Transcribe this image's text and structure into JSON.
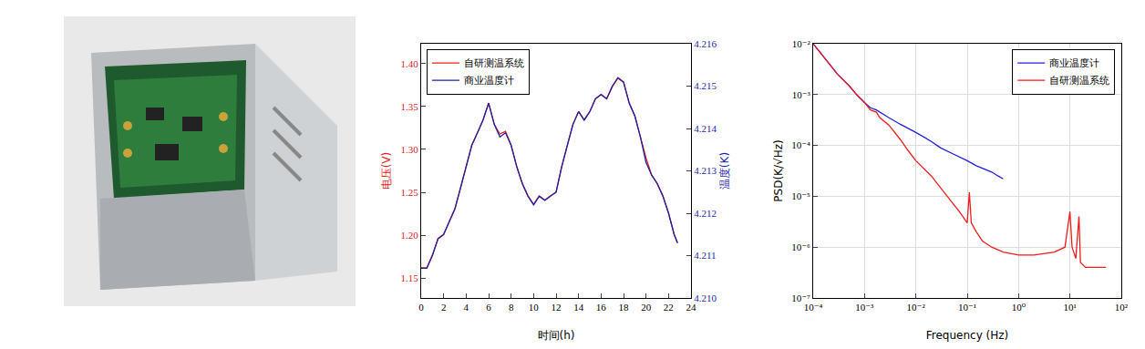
{
  "chart_data": [
    {
      "type": "line",
      "x_label": "时间(h)",
      "y_label": "电压(V)",
      "y2_label": "温度(K)",
      "xlim": [
        0,
        24
      ],
      "xticks": [
        0,
        2,
        4,
        6,
        8,
        10,
        12,
        14,
        16,
        18,
        20,
        22,
        24
      ],
      "ylim": [
        1.127,
        1.423
      ],
      "yticks": [
        1.15,
        {
          "value": 1.2,
          "label": "1.20"
        },
        1.25,
        {
          "value": 1.3,
          "label": "1.30"
        },
        1.35,
        {
          "value": 1.4,
          "label": "1.40"
        }
      ],
      "y2lim": [
        4.21,
        4.216
      ],
      "y2ticks": [
        {
          "value": 4.21,
          "label": "4.210"
        },
        4.211,
        4.212,
        4.213,
        4.214,
        4.215,
        4.216
      ],
      "grid": false,
      "legend": "top-left",
      "x": [
        0,
        0.5,
        1,
        1.5,
        2,
        2.5,
        3,
        3.5,
        4,
        4.5,
        5,
        5.5,
        6,
        6.5,
        7,
        7.5,
        8,
        8.5,
        9,
        9.5,
        10,
        10.5,
        11,
        11.5,
        12,
        12.5,
        13,
        13.5,
        14,
        14.5,
        15,
        15.5,
        16,
        16.5,
        17,
        17.5,
        18,
        18.5,
        19,
        19.5,
        20,
        20.5,
        21,
        21.5,
        22,
        22.5,
        22.8
      ],
      "series": [
        {
          "name": "自研测温系统",
          "color": "#e8201c",
          "axis": "y",
          "values": [
            1.162,
            1.162,
            1.177,
            1.196,
            1.201,
            1.216,
            1.231,
            1.255,
            1.28,
            1.305,
            1.319,
            1.334,
            1.354,
            1.329,
            1.318,
            1.321,
            1.305,
            1.28,
            1.26,
            1.246,
            1.236,
            1.246,
            1.241,
            1.246,
            1.25,
            1.28,
            1.305,
            1.329,
            1.344,
            1.334,
            1.344,
            1.359,
            1.364,
            1.359,
            1.373,
            1.383,
            1.378,
            1.354,
            1.339,
            1.314,
            1.29,
            1.27,
            1.26,
            1.246,
            1.226,
            1.201,
            1.191
          ]
        },
        {
          "name": "商业温度计",
          "color": "#1f1fa8",
          "axis": "y2",
          "values": [
            4.2107,
            4.2107,
            4.211,
            4.2114,
            4.2115,
            4.2118,
            4.2121,
            4.2126,
            4.2131,
            4.2136,
            4.2139,
            4.2142,
            4.2146,
            4.2141,
            4.2138,
            4.2139,
            4.2136,
            4.2131,
            4.2127,
            4.2124,
            4.2122,
            4.2124,
            4.2123,
            4.2124,
            4.2125,
            4.2131,
            4.2136,
            4.2141,
            4.2144,
            4.2142,
            4.2144,
            4.2147,
            4.2148,
            4.2147,
            4.215,
            4.2152,
            4.2151,
            4.2146,
            4.2143,
            4.2138,
            4.2132,
            4.2129,
            4.2127,
            4.2124,
            4.212,
            4.2115,
            4.2113
          ]
        }
      ]
    },
    {
      "type": "line",
      "log": true,
      "x_label": "Frequency (Hz)",
      "y_label": "PSD(K/√Hz)",
      "xlim": [
        0.0001,
        100
      ],
      "xticks": [
        {
          "value": 0.0001,
          "label": "10⁻⁴"
        },
        {
          "value": 0.001,
          "label": "10⁻³"
        },
        {
          "value": 0.01,
          "label": "10⁻²"
        },
        {
          "value": 0.1,
          "label": "10⁻¹"
        },
        {
          "value": 1,
          "label": "10⁰"
        },
        {
          "value": 10,
          "label": "10¹"
        },
        {
          "value": 100,
          "label": "10²"
        }
      ],
      "ylim": [
        1e-07,
        0.01
      ],
      "yticks": [
        {
          "value": 1e-07,
          "label": "10⁻⁷"
        },
        {
          "value": 1e-06,
          "label": "10⁻⁶"
        },
        {
          "value": 1e-05,
          "label": "10⁻⁵"
        },
        {
          "value": 0.0001,
          "label": "10⁻⁴"
        },
        {
          "value": 0.001,
          "label": "10⁻³"
        },
        {
          "value": 0.01,
          "label": "10⁻²"
        }
      ],
      "grid": true,
      "legend": "top-right",
      "series": [
        {
          "name": "商业温度计",
          "color": "#1f1fd8",
          "x": [
            0.0001,
            0.00015,
            0.0002,
            0.0003,
            0.0005,
            0.0007,
            0.001,
            0.0013,
            0.0017,
            0.002,
            0.003,
            0.005,
            0.007,
            0.01,
            0.02,
            0.03,
            0.05,
            0.07,
            0.1,
            0.15,
            0.2,
            0.3,
            0.4,
            0.5
          ],
          "values": [
            0.01,
            0.006,
            0.004,
            0.0025,
            0.0015,
            0.001,
            0.0007,
            0.00055,
            0.0005,
            0.00045,
            0.00035,
            0.00026,
            0.00022,
            0.00018,
            0.00012,
            9e-05,
            7e-05,
            6e-05,
            5e-05,
            4e-05,
            3.5e-05,
            3e-05,
            2.5e-05,
            2.2e-05
          ]
        },
        {
          "name": "自研测温系统",
          "color": "#ee1c1c",
          "x": [
            0.0001,
            0.00015,
            0.0002,
            0.0003,
            0.0005,
            0.0007,
            0.001,
            0.0013,
            0.0017,
            0.002,
            0.003,
            0.005,
            0.007,
            0.01,
            0.02,
            0.03,
            0.05,
            0.07,
            0.1,
            0.11,
            0.12,
            0.15,
            0.2,
            0.3,
            0.5,
            1,
            2,
            5,
            8,
            10,
            11,
            13,
            15,
            16,
            20,
            30,
            50
          ],
          "values": [
            0.01,
            0.006,
            0.004,
            0.0025,
            0.0015,
            0.001,
            0.0007,
            0.0005,
            0.00045,
            0.00035,
            0.00025,
            0.00013,
            8e-05,
            5e-05,
            2.5e-05,
            1.5e-05,
            8e-06,
            5e-06,
            3e-06,
            1.2e-05,
            3e-06,
            2e-06,
            1.3e-06,
            1e-06,
            8e-07,
            7e-07,
            7e-07,
            8e-07,
            1e-06,
            5e-06,
            1e-06,
            6e-07,
            4e-06,
            5e-07,
            4e-07,
            4e-07,
            4e-07
          ]
        }
      ]
    }
  ]
}
